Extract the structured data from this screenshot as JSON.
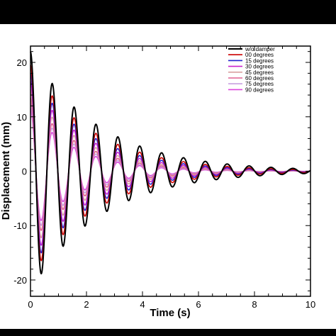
{
  "chart_data": {
    "type": "line",
    "xlabel": "Time (s)",
    "ylabel": "Displacement (mm)",
    "xlim": [
      0,
      10
    ],
    "ylim": [
      -23,
      23
    ],
    "xticks": [
      "0",
      "2",
      "4",
      "6",
      "8",
      "10"
    ],
    "yticks": [
      "20",
      "10",
      "0",
      "-10",
      "-20"
    ],
    "xtick_values": [
      0,
      2,
      4,
      6,
      8,
      10
    ],
    "ytick_values": [
      20,
      10,
      0,
      -10,
      -20
    ],
    "grid": false,
    "legend_placement": "top-right",
    "model": {
      "form": "A * exp(-z*t) * cos(2*pi*f*t)",
      "frequency_hz": 1.28
    },
    "series": [
      {
        "name": "w/o damper",
        "color": "#000000",
        "amplitude": 22.0,
        "decay": 0.4
      },
      {
        "name": "00 degrees",
        "color": "#cc0000",
        "amplitude": 19.5,
        "decay": 0.44
      },
      {
        "name": "15 degrees",
        "color": "#2222cc",
        "amplitude": 18.0,
        "decay": 0.47
      },
      {
        "name": "30 degrees",
        "color": "#cc22cc",
        "amplitude": 16.5,
        "decay": 0.5
      },
      {
        "name": "45 degrees",
        "color": "#d9a0a0",
        "amplitude": 15.0,
        "decay": 0.53
      },
      {
        "name": "60 degrees",
        "color": "#e06090",
        "amplitude": 13.5,
        "decay": 0.56
      },
      {
        "name": "75 degrees",
        "color": "#c8a0e0",
        "amplitude": 12.5,
        "decay": 0.59
      },
      {
        "name": "90 degrees",
        "color": "#dd44dd",
        "amplitude": 11.5,
        "decay": 0.62
      }
    ]
  }
}
